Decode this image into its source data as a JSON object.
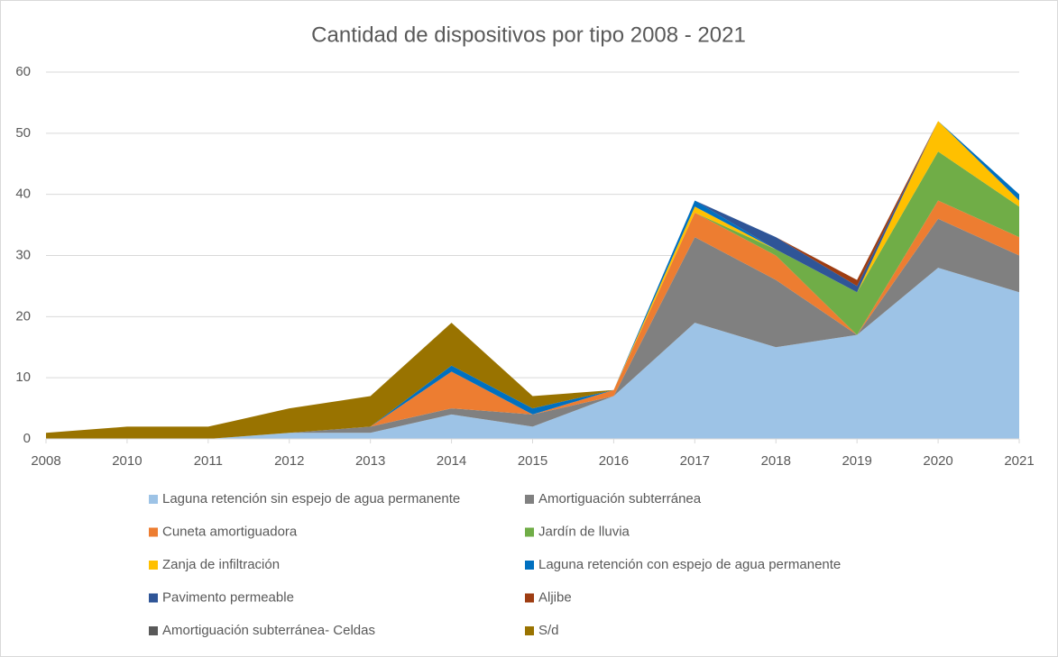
{
  "chart_data": {
    "type": "stacked_area",
    "title": "Cantidad de dispositivos por tipo 2008 - 2021",
    "categories": [
      "2008",
      "2010",
      "2011",
      "2012",
      "2013",
      "2014",
      "2015",
      "2016",
      "2017",
      "2018",
      "2019",
      "2020",
      "2021"
    ],
    "series": [
      {
        "name": "Laguna retención sin espejo de agua permanente",
        "color": "#9dc3e6",
        "values": [
          0,
          0,
          0,
          1,
          1,
          4,
          2,
          7,
          19,
          15,
          17,
          28,
          24
        ]
      },
      {
        "name": "Amortiguación subterránea",
        "color": "#808080",
        "values": [
          0,
          0,
          0,
          0,
          1,
          1,
          2,
          0,
          14,
          11,
          0,
          8,
          6
        ]
      },
      {
        "name": "Cuneta amortiguadora",
        "color": "#ed7d31",
        "values": [
          0,
          0,
          0,
          0,
          0,
          6,
          0,
          1,
          4,
          4,
          0,
          3,
          3
        ]
      },
      {
        "name": "Jardín de lluvia",
        "color": "#70ad47",
        "values": [
          0,
          0,
          0,
          0,
          0,
          0,
          0,
          0,
          0,
          1,
          7,
          8,
          5
        ]
      },
      {
        "name": "Zanja de infiltración",
        "color": "#ffc000",
        "values": [
          0,
          0,
          0,
          0,
          0,
          0,
          0,
          0,
          1,
          0,
          0,
          5,
          1
        ]
      },
      {
        "name": "Laguna retención con espejo de agua permanente",
        "color": "#0070c0",
        "values": [
          0,
          0,
          0,
          0,
          0,
          1,
          1,
          0,
          1,
          0,
          0,
          0,
          1
        ]
      },
      {
        "name": "Pavimento permeable",
        "color": "#2f5597",
        "values": [
          0,
          0,
          0,
          0,
          0,
          0,
          0,
          0,
          0,
          2,
          1,
          0,
          0
        ]
      },
      {
        "name": "Aljibe",
        "color": "#9e3d12",
        "values": [
          0,
          0,
          0,
          0,
          0,
          0,
          0,
          0,
          0,
          0,
          1,
          0,
          0
        ]
      },
      {
        "name": "Amortiguación subterránea- Celdas",
        "color": "#595959",
        "values": [
          0,
          0,
          0,
          0,
          0,
          0,
          0,
          0,
          0,
          0,
          0,
          0,
          0
        ]
      },
      {
        "name": "S/d",
        "color": "#997300",
        "values": [
          1,
          2,
          2,
          4,
          5,
          7,
          2,
          0,
          0,
          0,
          0,
          0,
          0
        ]
      }
    ],
    "ylim": [
      0,
      60
    ],
    "yticks": [
      0,
      10,
      20,
      30,
      40,
      50,
      60
    ],
    "grid": true,
    "legend": "bottom"
  }
}
